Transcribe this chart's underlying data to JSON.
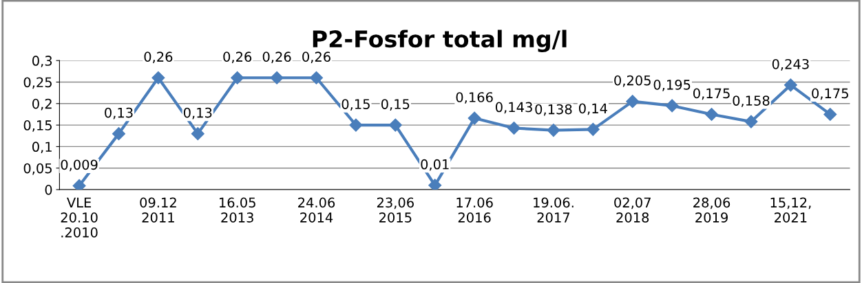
{
  "chart_data": {
    "type": "line",
    "title": "P2-Fosfor total mg/l",
    "categories": [
      "VLE\n20.10\n.2010",
      null,
      "09.12\n2011",
      null,
      "16.05\n2013",
      null,
      "24.06\n2014",
      null,
      "23,06\n2015",
      null,
      "17.06\n2016",
      null,
      "19.06.\n2017",
      null,
      "02,07\n2018",
      null,
      "28,06\n2019",
      null,
      "15,12,\n2021",
      null
    ],
    "series": [
      {
        "color": "#4a7ebb",
        "values": [
          0.009,
          0.13,
          0.26,
          0.13,
          0.26,
          0.26,
          0.26,
          0.15,
          0.15,
          0.01,
          0.166,
          0.143,
          0.138,
          0.14,
          0.205,
          0.195,
          0.175,
          0.158,
          0.243,
          0.175
        ],
        "value_labels": [
          "0,009",
          "0,13",
          "0,26",
          "0,13",
          "0,26",
          "0,26",
          "0,26",
          "0,15",
          "0,15",
          "0,01",
          "0,166",
          "0,143",
          "0,138",
          "0,14",
          "0,205",
          "0,195",
          "0,175",
          "0,158",
          "0,243",
          "0,175"
        ]
      }
    ],
    "ylim": [
      0,
      0.3
    ],
    "yticks": [
      {
        "value": 0,
        "label": "0"
      },
      {
        "value": 0.05,
        "label": "0,05"
      },
      {
        "value": 0.1,
        "label": "0,1"
      },
      {
        "value": 0.15,
        "label": "0,15"
      },
      {
        "value": 0.2,
        "label": "0,2"
      },
      {
        "value": 0.25,
        "label": "0,25"
      },
      {
        "value": 0.3,
        "label": "0,3"
      }
    ],
    "grid": "y",
    "marker": "diamond",
    "line_style": "solid",
    "legend": false
  }
}
